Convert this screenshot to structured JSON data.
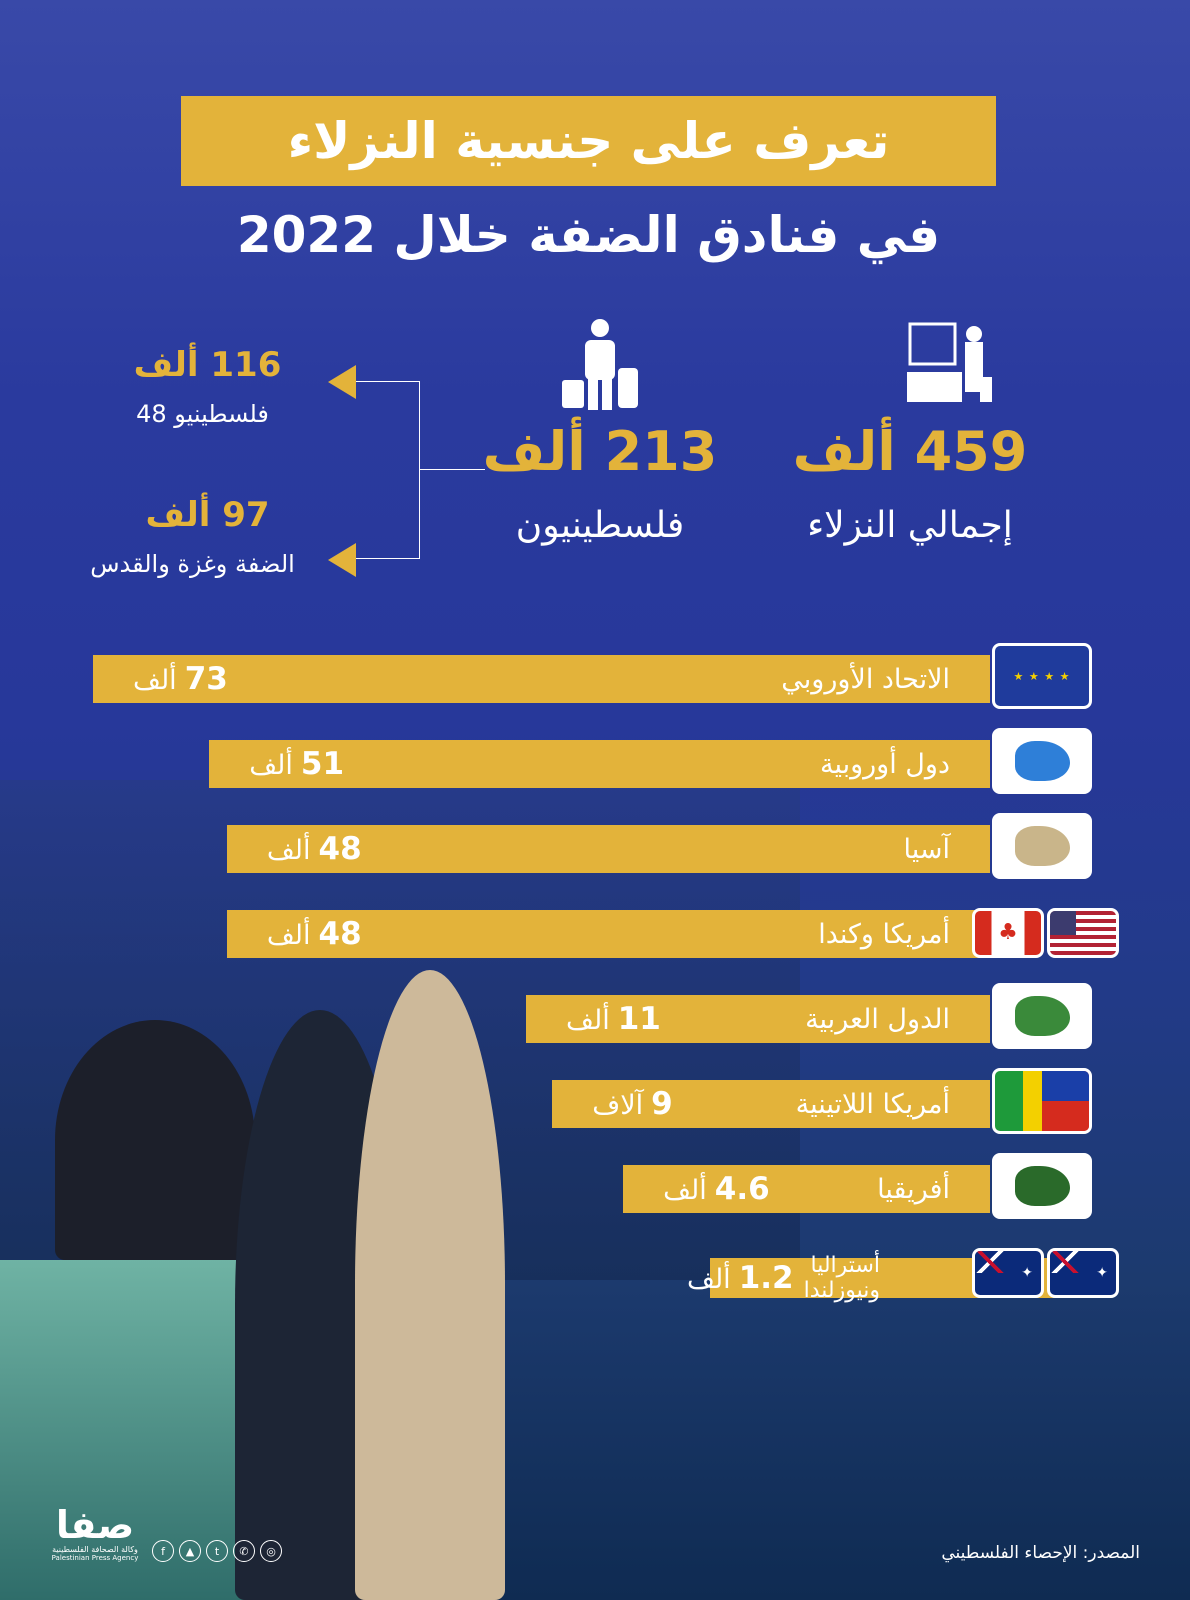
{
  "title": {
    "line1": "تعرف على جنسية النزلاء",
    "line2": "في فنادق الضفة خلال 2022"
  },
  "summary": {
    "total": {
      "value": "459 ألف",
      "label": "إجمالي النزلاء",
      "icon": "hotel-guest-icon"
    },
    "palestinians": {
      "value": "213 ألف",
      "label": "فلسطينيون",
      "icon": "traveler-icon"
    },
    "pal48": {
      "value": "116 ألف",
      "label": "فلسطينيو 48"
    },
    "westbank": {
      "value": "97 ألف",
      "label": "الضفة وغزة والقدس"
    }
  },
  "chart_data": {
    "type": "bar",
    "orientation": "horizontal",
    "unit": "ألف",
    "categories": [
      "الاتحاد الأوروبي",
      "دول أوروبية",
      "آسيا",
      "أمريكا وكندا",
      "الدول العربية",
      "أمريكا اللاتينية",
      "أفريقيا",
      "أستراليا ونيوزلندا"
    ],
    "values": [
      73,
      51,
      48,
      48,
      11,
      9,
      4.6,
      1.2
    ],
    "value_labels": [
      "73",
      "51",
      "48",
      "48",
      "11",
      "9",
      "4.6",
      "1.2"
    ],
    "unit_labels": [
      "ألف",
      "ألف",
      "ألف",
      "ألف",
      "ألف",
      "آلاف",
      "ألف",
      "ألف"
    ],
    "icons": [
      "eu-flag-icon",
      "europe-map-icon",
      "asia-map-icon",
      "usa-canada-flags-icon",
      "arab-map-icon",
      "latin-america-flags-icon",
      "africa-map-icon",
      "australia-nz-flags-icon"
    ]
  },
  "footer": {
    "source": "المصدر: الإحصاء الفلسطيني",
    "brand": "صفا",
    "brand_ar": "وكالة الصحافة الفلسطينية",
    "brand_en": "Palestinian Press Agency",
    "social": [
      "f",
      "▲",
      "t",
      "✆",
      "◎"
    ]
  },
  "colors": {
    "gold": "#e3b33a",
    "blue": "#27389a"
  }
}
